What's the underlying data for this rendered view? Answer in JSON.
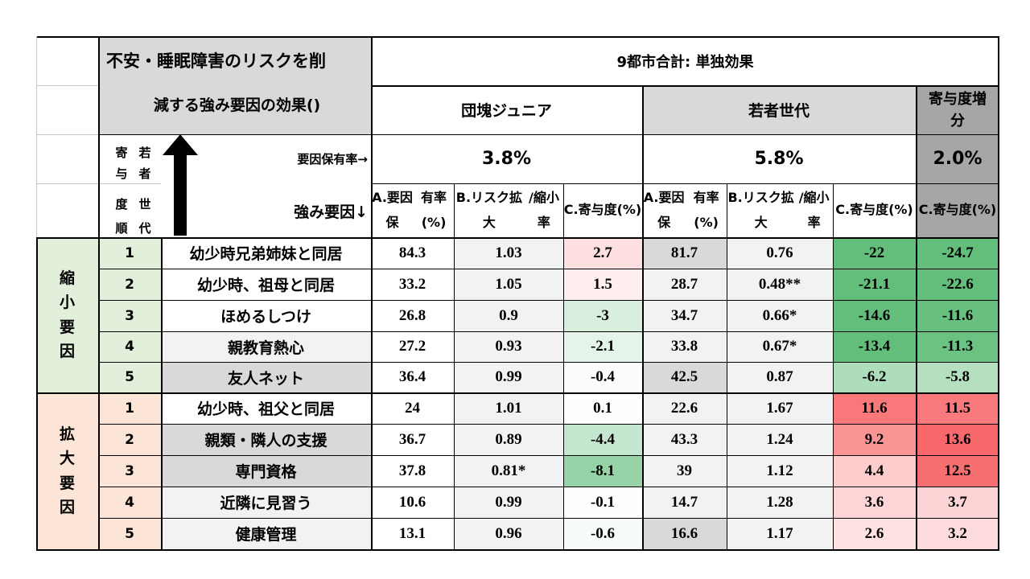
{
  "title_line1": "不安・睡眠障害のリスクを削",
  "title_line2": "減する強み要因の効果()",
  "top_header": "9都市合計: 単独効果",
  "groups": [
    {
      "label": "団塊ジュニア",
      "rate": "3.8%"
    },
    {
      "label": "若者世代",
      "rate": "5.8%"
    },
    {
      "label": "寄与度増分",
      "rate": "2.0%"
    }
  ],
  "rank_header": {
    "col1": [
      "寄",
      "与",
      "度",
      "順"
    ],
    "col2": [
      "若",
      "者",
      "世",
      "代"
    ]
  },
  "factor_rate_label": "要因保有率→",
  "strength_label": "強み要因↓",
  "sub_headers": [
    {
      "a": "A.要因保",
      "b": "有率(%)"
    },
    {
      "a": "B.リスク拡大",
      "b": "/縮小率"
    },
    {
      "a": "C.寄与度",
      "b": "(%)"
    },
    {
      "a": "A.要因保",
      "b": "有率(%)"
    },
    {
      "a": "B.リスク拡大",
      "b": "/縮小率"
    },
    {
      "a": "C.寄与度",
      "b": "(%)"
    },
    {
      "a": "C.寄与度",
      "b": "(%)"
    }
  ],
  "sections": [
    {
      "label": [
        "縮",
        "小",
        "要",
        "因"
      ],
      "color": "#e2efda"
    },
    {
      "label": [
        "拡",
        "大",
        "要",
        "因"
      ],
      "color": "#fce4d6"
    }
  ],
  "rows": [
    {
      "rank": "1",
      "name": "幼少時兄弟姉妹と同居",
      "v": [
        "84.3",
        "1.03",
        "2.7",
        "81.7",
        "0.76",
        "-22",
        "-24.7"
      ]
    },
    {
      "rank": "2",
      "name": "幼少時、祖母と同居",
      "v": [
        "33.2",
        "1.05",
        "1.5",
        "28.7",
        "0.48**",
        "-21.1",
        "-22.6"
      ]
    },
    {
      "rank": "3",
      "name": "ほめるしつけ",
      "v": [
        "26.8",
        "0.9",
        "-3",
        "34.7",
        "0.66*",
        "-14.6",
        "-11.6"
      ]
    },
    {
      "rank": "4",
      "name": "親教育熱心",
      "v": [
        "27.2",
        "0.93",
        "-2.1",
        "33.8",
        "0.67*",
        "-13.4",
        "-11.3"
      ]
    },
    {
      "rank": "5",
      "name": "友人ネット",
      "v": [
        "36.4",
        "0.99",
        "-0.4",
        "42.5",
        "0.87",
        "-6.2",
        "-5.8"
      ]
    },
    {
      "rank": "1",
      "name": "幼少時、祖父と同居",
      "v": [
        "24",
        "1.01",
        "0.1",
        "22.6",
        "1.67",
        "11.6",
        "11.5"
      ]
    },
    {
      "rank": "2",
      "name": "親類・隣人の支援",
      "v": [
        "36.7",
        "0.89",
        "-4.4",
        "43.3",
        "1.24",
        "9.2",
        "13.6"
      ]
    },
    {
      "rank": "3",
      "name": "専門資格",
      "v": [
        "37.8",
        "0.81*",
        "-8.1",
        "39",
        "1.12",
        "4.4",
        "12.5"
      ]
    },
    {
      "rank": "4",
      "name": "近隣に見習う",
      "v": [
        "10.6",
        "0.99",
        "-0.1",
        "14.7",
        "1.28",
        "3.6",
        "3.7"
      ]
    },
    {
      "rank": "5",
      "name": "健康管理",
      "v": [
        "13.1",
        "0.96",
        "-0.6",
        "16.6",
        "1.17",
        "2.6",
        "3.2"
      ]
    }
  ]
}
